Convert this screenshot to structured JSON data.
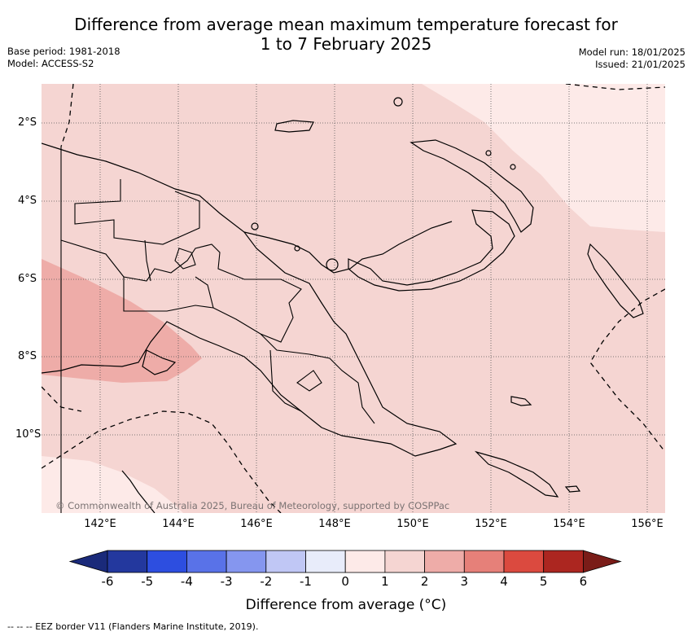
{
  "title_line1": "Difference from average mean maximum temperature forecast for",
  "title_line2": "1 to 7 February 2025",
  "base_period": "Base period: 1981-2018",
  "model": "Model: ACCESS-S2",
  "model_run": "Model run: 18/01/2025",
  "issued": "Issued: 21/01/2025",
  "lat_labels": [
    "2°S",
    "4°S",
    "6°S",
    "8°S",
    "10°S"
  ],
  "lon_labels": [
    "142°E",
    "144°E",
    "146°E",
    "148°E",
    "150°E",
    "152°E",
    "154°E",
    "156°E"
  ],
  "copyright": "© Commonwealth of Australia 2025, Bureau of Meteorology, supported by COSPPac",
  "colorbar": {
    "ticks": [
      "-6",
      "-5",
      "-4",
      "-3",
      "-2",
      "-1",
      "0",
      "1",
      "2",
      "3",
      "4",
      "5",
      "6"
    ],
    "colors": [
      "#23389e",
      "#2d4ee0",
      "#5972e8",
      "#8596ef",
      "#c0c7f5",
      "#e8ecfa",
      "#fdeae8",
      "#f5d5d2",
      "#eeaca8",
      "#e68079",
      "#db4a3f",
      "#ac2620"
    ],
    "under_color": "#1a2a7a",
    "over_color": "#7a1c18",
    "label": "Difference from average (°C)"
  },
  "eez_note": "--  --  -- EEZ border V11 (Flanders Marine Institute, 2019)."
}
